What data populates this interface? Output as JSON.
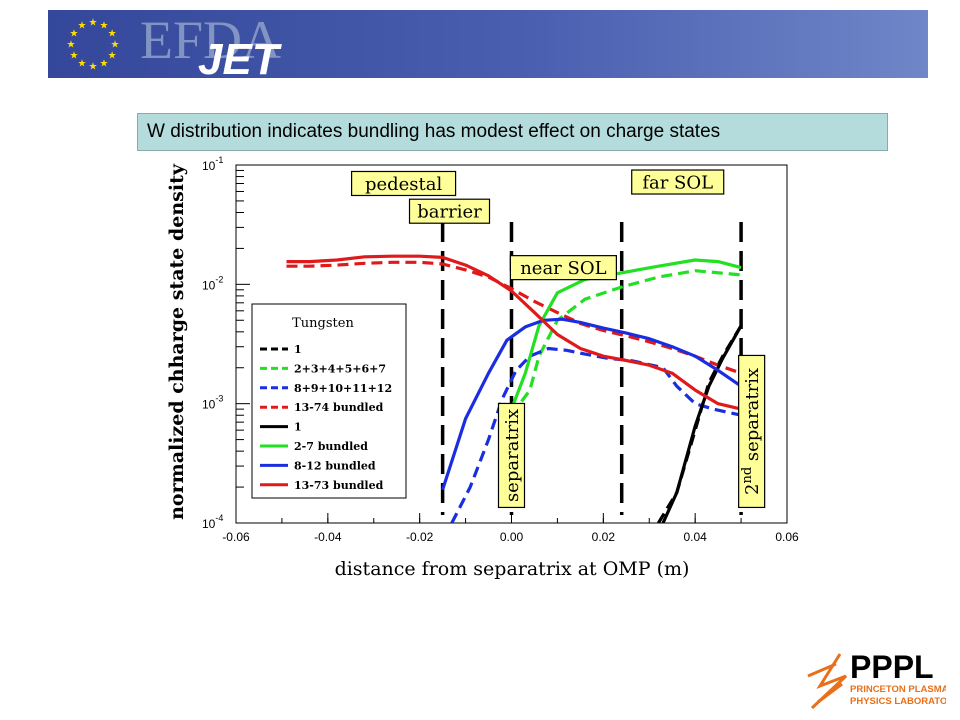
{
  "header": {
    "logo_efda": "EFDA",
    "logo_jet": "JET",
    "title": "W distribution indicates bundling has modest effect on charge states"
  },
  "footer": {
    "logo_pppl": "PPPL",
    "logo_sub1": "PRINCETON PLASMA",
    "logo_sub2": "PHYSICS LABORATORY"
  },
  "colors": {
    "banner": "#3d4fa0",
    "title_bg": "#b4dcdc",
    "label_bg": "#ffff99",
    "black": "#000000",
    "green": "#22e022",
    "blue": "#1a2ee0",
    "red": "#e01a1a"
  },
  "chart_data": {
    "type": "line",
    "title": "",
    "xlabel": "distance from separatrix at OMP (m)",
    "ylabel": "normalized chharge state density",
    "xlim": [
      -0.06,
      0.06
    ],
    "ylim": [
      0.0001,
      0.1
    ],
    "yscale": "log",
    "x_ticks": [
      "-0.06",
      "-0.04",
      "-0.02",
      "0.00",
      "0.02",
      "0.04",
      "0.06"
    ],
    "y_ticks": [
      {
        "value": 0.1,
        "base": "10",
        "exp": "-1"
      },
      {
        "value": 0.01,
        "base": "10",
        "exp": "-2"
      },
      {
        "value": 0.001,
        "base": "10",
        "exp": "-3"
      },
      {
        "value": 0.0001,
        "base": "10",
        "exp": "-4"
      }
    ],
    "legend": {
      "title": "Tungsten",
      "placement": "left",
      "entries": [
        {
          "label": "1",
          "color": "#000000",
          "dash": true
        },
        {
          "label": "2+3+4+5+6+7",
          "color": "#22e022",
          "dash": true
        },
        {
          "label": "8+9+10+11+12",
          "color": "#1a2ee0",
          "dash": true
        },
        {
          "label": "13-74 bundled",
          "color": "#e01a1a",
          "dash": true
        },
        {
          "label": "1",
          "color": "#000000",
          "dash": false
        },
        {
          "label": "2-7 bundled",
          "color": "#22e022",
          "dash": false
        },
        {
          "label": "8-12 bundled",
          "color": "#1a2ee0",
          "dash": false
        },
        {
          "label": "13-73 bundled",
          "color": "#e01a1a",
          "dash": false
        }
      ]
    },
    "vlines": [
      -0.015,
      0.0,
      0.024,
      0.05
    ],
    "region_labels": [
      {
        "text": "pedestal",
        "x": -0.0235,
        "y": 0.07
      },
      {
        "text": "barrier",
        "x": -0.0135,
        "y": 0.041
      },
      {
        "text": "near SOL",
        "x": 0.0113,
        "y": 0.0138
      },
      {
        "text": "far SOL",
        "x": 0.0362,
        "y": 0.072
      }
    ],
    "vertical_labels": [
      {
        "text": "separatrix",
        "sup": "",
        "x": 0.0,
        "y_bottom": 0.000135
      },
      {
        "text": "separatrix",
        "sup": "nd",
        "prefix": "2",
        "x": 0.0523,
        "y_bottom": 0.000135
      }
    ],
    "series": [
      {
        "name": "1",
        "color": "#000000",
        "dash": true,
        "x": [
          0.032,
          0.036,
          0.04,
          0.043,
          0.046,
          0.05
        ],
        "y": [
          0.0001,
          0.00018,
          0.0006,
          0.0015,
          0.0025,
          0.0045
        ]
      },
      {
        "name": "2+3+4+5+6+7",
        "color": "#22e022",
        "dash": true,
        "x": [
          0.0,
          0.004,
          0.006,
          0.01,
          0.016,
          0.024,
          0.032,
          0.04,
          0.05
        ],
        "y": [
          0.0008,
          0.0013,
          0.0025,
          0.005,
          0.0075,
          0.0095,
          0.0115,
          0.013,
          0.012
        ]
      },
      {
        "name": "8+9+10+11+12",
        "color": "#1a2ee0",
        "dash": true,
        "x": [
          -0.013,
          -0.009,
          -0.005,
          -0.002,
          0.001,
          0.004,
          0.008,
          0.012,
          0.016,
          0.021,
          0.026,
          0.033,
          0.036,
          0.04,
          0.044,
          0.05
        ],
        "y": [
          0.0001,
          0.0002,
          0.0005,
          0.0011,
          0.0019,
          0.0025,
          0.0029,
          0.0028,
          0.0026,
          0.0024,
          0.0023,
          0.002,
          0.0014,
          0.001,
          0.0009,
          0.0008
        ]
      },
      {
        "name": "13-74 bundled",
        "color": "#e01a1a",
        "dash": true,
        "x": [
          -0.049,
          -0.044,
          -0.038,
          -0.032,
          -0.026,
          -0.02,
          -0.015,
          -0.01,
          -0.005,
          0.0,
          0.005,
          0.01,
          0.015,
          0.02,
          0.025,
          0.03,
          0.035,
          0.04,
          0.045,
          0.05
        ],
        "y": [
          0.0142,
          0.0142,
          0.0145,
          0.015,
          0.0153,
          0.0153,
          0.0148,
          0.0132,
          0.0115,
          0.0092,
          0.0072,
          0.0058,
          0.0047,
          0.0041,
          0.0037,
          0.0033,
          0.0029,
          0.0025,
          0.0021,
          0.0018
        ]
      },
      {
        "name": "1",
        "color": "#000000",
        "dash": false,
        "x": [
          0.033,
          0.036,
          0.04,
          0.043,
          0.046,
          0.05
        ],
        "y": [
          0.0001,
          0.00018,
          0.00065,
          0.0014,
          0.0024,
          0.0045
        ]
      },
      {
        "name": "2-7 bundled",
        "color": "#22e022",
        "dash": false,
        "x": [
          0.0,
          0.003,
          0.006,
          0.01,
          0.016,
          0.024,
          0.032,
          0.04,
          0.045,
          0.05
        ],
        "y": [
          0.0009,
          0.0018,
          0.0045,
          0.0085,
          0.011,
          0.0125,
          0.0142,
          0.016,
          0.0155,
          0.0138
        ]
      },
      {
        "name": "8-12 bundled",
        "color": "#1a2ee0",
        "dash": false,
        "x": [
          -0.015,
          -0.01,
          -0.005,
          -0.001,
          0.003,
          0.007,
          0.011,
          0.015,
          0.02,
          0.025,
          0.03,
          0.035,
          0.04,
          0.045,
          0.05
        ],
        "y": [
          0.00019,
          0.00075,
          0.0018,
          0.0034,
          0.0044,
          0.005,
          0.0051,
          0.0048,
          0.0043,
          0.0039,
          0.0035,
          0.003,
          0.0025,
          0.0019,
          0.0014
        ]
      },
      {
        "name": "13-73 bundled",
        "color": "#e01a1a",
        "dash": false,
        "x": [
          -0.049,
          -0.044,
          -0.038,
          -0.032,
          -0.026,
          -0.02,
          -0.015,
          -0.01,
          -0.005,
          0.0,
          0.005,
          0.01,
          0.015,
          0.02,
          0.025,
          0.03,
          0.035,
          0.04,
          0.045,
          0.05
        ],
        "y": [
          0.0155,
          0.0155,
          0.016,
          0.017,
          0.0172,
          0.0172,
          0.0168,
          0.0145,
          0.0118,
          0.0088,
          0.0058,
          0.0038,
          0.0029,
          0.0025,
          0.0023,
          0.0021,
          0.0018,
          0.0013,
          0.001,
          0.0009
        ]
      }
    ]
  }
}
